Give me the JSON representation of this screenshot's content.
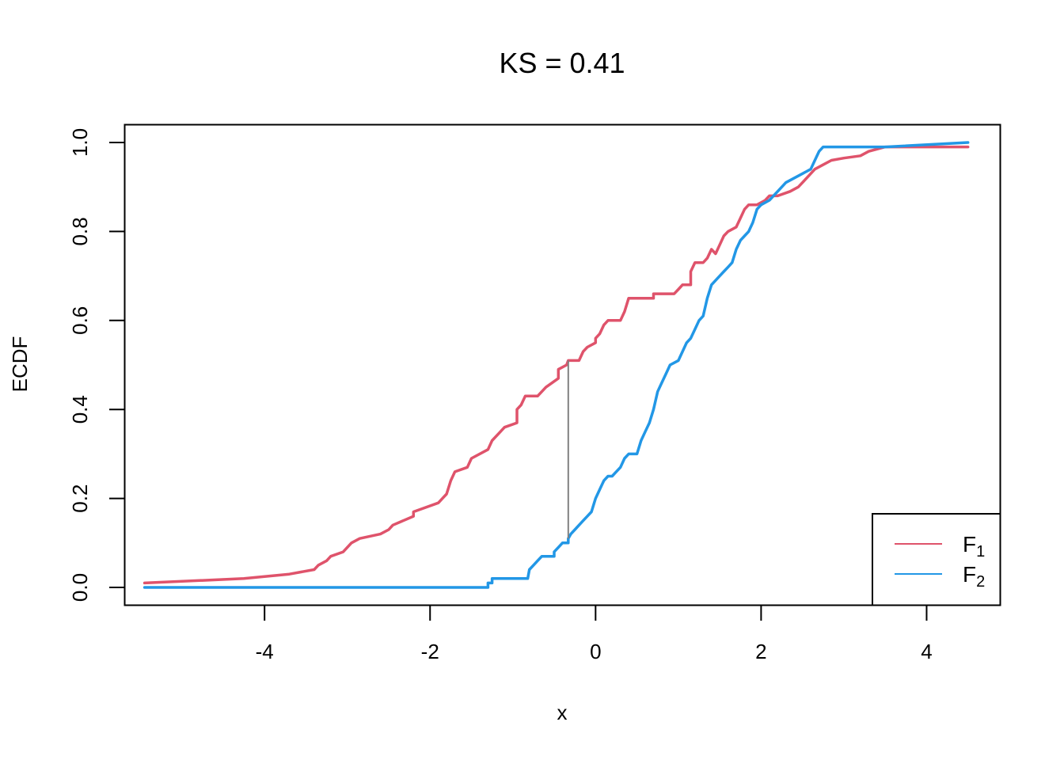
{
  "chart_data": {
    "type": "line",
    "title": "KS = 0.41",
    "xlabel": "x",
    "ylabel": "ECDF",
    "xlim": [
      -5.69,
      4.89
    ],
    "ylim": [
      -0.04,
      1.04
    ],
    "x_ticks": [
      -4,
      -2,
      0,
      2,
      4
    ],
    "x_tick_labels": [
      "-4",
      "-2",
      "0",
      "2",
      "4"
    ],
    "y_ticks": [
      0,
      0.2,
      0.4,
      0.6,
      0.8,
      1
    ],
    "y_tick_labels": [
      "0.0",
      "0.2",
      "0.4",
      "0.6",
      "0.8",
      "1.0"
    ],
    "grid": false,
    "legend_position": "bottom-right",
    "ks_segment": {
      "x": -0.33,
      "y_from": 0.11,
      "y_to": 0.51,
      "color": "#808080"
    },
    "series": [
      {
        "legend_main": "F",
        "legend_sub": "1",
        "color": "#DF536B",
        "points": [
          [
            -5.45,
            0.01
          ],
          [
            -4.25,
            0.02
          ],
          [
            -3.7,
            0.03
          ],
          [
            -3.4,
            0.04
          ],
          [
            -3.35,
            0.05
          ],
          [
            -3.25,
            0.06
          ],
          [
            -3.2,
            0.07
          ],
          [
            -3.05,
            0.08
          ],
          [
            -3.0,
            0.09
          ],
          [
            -2.95,
            0.1
          ],
          [
            -2.85,
            0.11
          ],
          [
            -2.6,
            0.12
          ],
          [
            -2.5,
            0.13
          ],
          [
            -2.45,
            0.14
          ],
          [
            -2.2,
            0.16
          ],
          [
            -2.2,
            0.17
          ],
          [
            -1.9,
            0.19
          ],
          [
            -1.85,
            0.2
          ],
          [
            -1.8,
            0.21
          ],
          [
            -1.75,
            0.24
          ],
          [
            -1.7,
            0.26
          ],
          [
            -1.55,
            0.27
          ],
          [
            -1.5,
            0.29
          ],
          [
            -1.3,
            0.31
          ],
          [
            -1.25,
            0.33
          ],
          [
            -1.15,
            0.35
          ],
          [
            -1.1,
            0.36
          ],
          [
            -0.95,
            0.37
          ],
          [
            -0.95,
            0.4
          ],
          [
            -0.9,
            0.41
          ],
          [
            -0.85,
            0.43
          ],
          [
            -0.7,
            0.43
          ],
          [
            -0.6,
            0.45
          ],
          [
            -0.45,
            0.47
          ],
          [
            -0.45,
            0.49
          ],
          [
            -0.35,
            0.5
          ],
          [
            -0.33,
            0.51
          ],
          [
            -0.2,
            0.51
          ],
          [
            -0.15,
            0.53
          ],
          [
            -0.1,
            0.54
          ],
          [
            0.0,
            0.55
          ],
          [
            0.0,
            0.56
          ],
          [
            0.05,
            0.57
          ],
          [
            0.1,
            0.59
          ],
          [
            0.15,
            0.6
          ],
          [
            0.3,
            0.6
          ],
          [
            0.35,
            0.62
          ],
          [
            0.4,
            0.65
          ],
          [
            0.7,
            0.65
          ],
          [
            0.7,
            0.66
          ],
          [
            0.95,
            0.66
          ],
          [
            1.0,
            0.67
          ],
          [
            1.05,
            0.68
          ],
          [
            1.15,
            0.68
          ],
          [
            1.15,
            0.71
          ],
          [
            1.2,
            0.73
          ],
          [
            1.3,
            0.73
          ],
          [
            1.35,
            0.74
          ],
          [
            1.4,
            0.76
          ],
          [
            1.45,
            0.75
          ],
          [
            1.5,
            0.77
          ],
          [
            1.55,
            0.79
          ],
          [
            1.6,
            0.8
          ],
          [
            1.7,
            0.81
          ],
          [
            1.75,
            0.83
          ],
          [
            1.8,
            0.85
          ],
          [
            1.85,
            0.86
          ],
          [
            1.95,
            0.86
          ],
          [
            2.05,
            0.87
          ],
          [
            2.1,
            0.88
          ],
          [
            2.2,
            0.88
          ],
          [
            2.35,
            0.89
          ],
          [
            2.45,
            0.9
          ],
          [
            2.5,
            0.91
          ],
          [
            2.55,
            0.92
          ],
          [
            2.6,
            0.93
          ],
          [
            2.65,
            0.94
          ],
          [
            2.75,
            0.95
          ],
          [
            2.85,
            0.96
          ],
          [
            3.0,
            0.965
          ],
          [
            3.2,
            0.97
          ],
          [
            3.3,
            0.98
          ],
          [
            3.5,
            0.99
          ],
          [
            4.5,
            0.99
          ]
        ]
      },
      {
        "legend_main": "F",
        "legend_sub": "2",
        "color": "#2297E6",
        "points": [
          [
            -5.45,
            0.0
          ],
          [
            -1.3,
            0.0
          ],
          [
            -1.3,
            0.01
          ],
          [
            -1.25,
            0.01
          ],
          [
            -1.25,
            0.02
          ],
          [
            -0.82,
            0.02
          ],
          [
            -0.8,
            0.04
          ],
          [
            -0.75,
            0.05
          ],
          [
            -0.7,
            0.06
          ],
          [
            -0.65,
            0.07
          ],
          [
            -0.5,
            0.07
          ],
          [
            -0.5,
            0.08
          ],
          [
            -0.45,
            0.09
          ],
          [
            -0.4,
            0.1
          ],
          [
            -0.33,
            0.1
          ],
          [
            -0.33,
            0.11
          ],
          [
            -0.3,
            0.12
          ],
          [
            -0.25,
            0.13
          ],
          [
            -0.2,
            0.14
          ],
          [
            -0.15,
            0.15
          ],
          [
            -0.1,
            0.16
          ],
          [
            -0.05,
            0.17
          ],
          [
            0.0,
            0.2
          ],
          [
            0.05,
            0.22
          ],
          [
            0.1,
            0.24
          ],
          [
            0.15,
            0.25
          ],
          [
            0.2,
            0.25
          ],
          [
            0.25,
            0.26
          ],
          [
            0.3,
            0.27
          ],
          [
            0.35,
            0.29
          ],
          [
            0.4,
            0.3
          ],
          [
            0.5,
            0.3
          ],
          [
            0.55,
            0.33
          ],
          [
            0.6,
            0.35
          ],
          [
            0.65,
            0.37
          ],
          [
            0.7,
            0.4
          ],
          [
            0.75,
            0.44
          ],
          [
            0.8,
            0.46
          ],
          [
            0.85,
            0.48
          ],
          [
            0.9,
            0.5
          ],
          [
            1.0,
            0.51
          ],
          [
            1.05,
            0.53
          ],
          [
            1.1,
            0.55
          ],
          [
            1.15,
            0.56
          ],
          [
            1.2,
            0.58
          ],
          [
            1.25,
            0.6
          ],
          [
            1.3,
            0.61
          ],
          [
            1.35,
            0.65
          ],
          [
            1.4,
            0.68
          ],
          [
            1.45,
            0.69
          ],
          [
            1.5,
            0.7
          ],
          [
            1.55,
            0.71
          ],
          [
            1.6,
            0.72
          ],
          [
            1.65,
            0.73
          ],
          [
            1.7,
            0.76
          ],
          [
            1.75,
            0.78
          ],
          [
            1.8,
            0.79
          ],
          [
            1.85,
            0.8
          ],
          [
            1.9,
            0.82
          ],
          [
            1.95,
            0.85
          ],
          [
            2.0,
            0.86
          ],
          [
            2.1,
            0.87
          ],
          [
            2.2,
            0.89
          ],
          [
            2.3,
            0.91
          ],
          [
            2.4,
            0.92
          ],
          [
            2.5,
            0.93
          ],
          [
            2.6,
            0.94
          ],
          [
            2.65,
            0.96
          ],
          [
            2.7,
            0.98
          ],
          [
            2.75,
            0.99
          ],
          [
            3.5,
            0.99
          ],
          [
            4.5,
            1.0
          ]
        ]
      }
    ]
  }
}
